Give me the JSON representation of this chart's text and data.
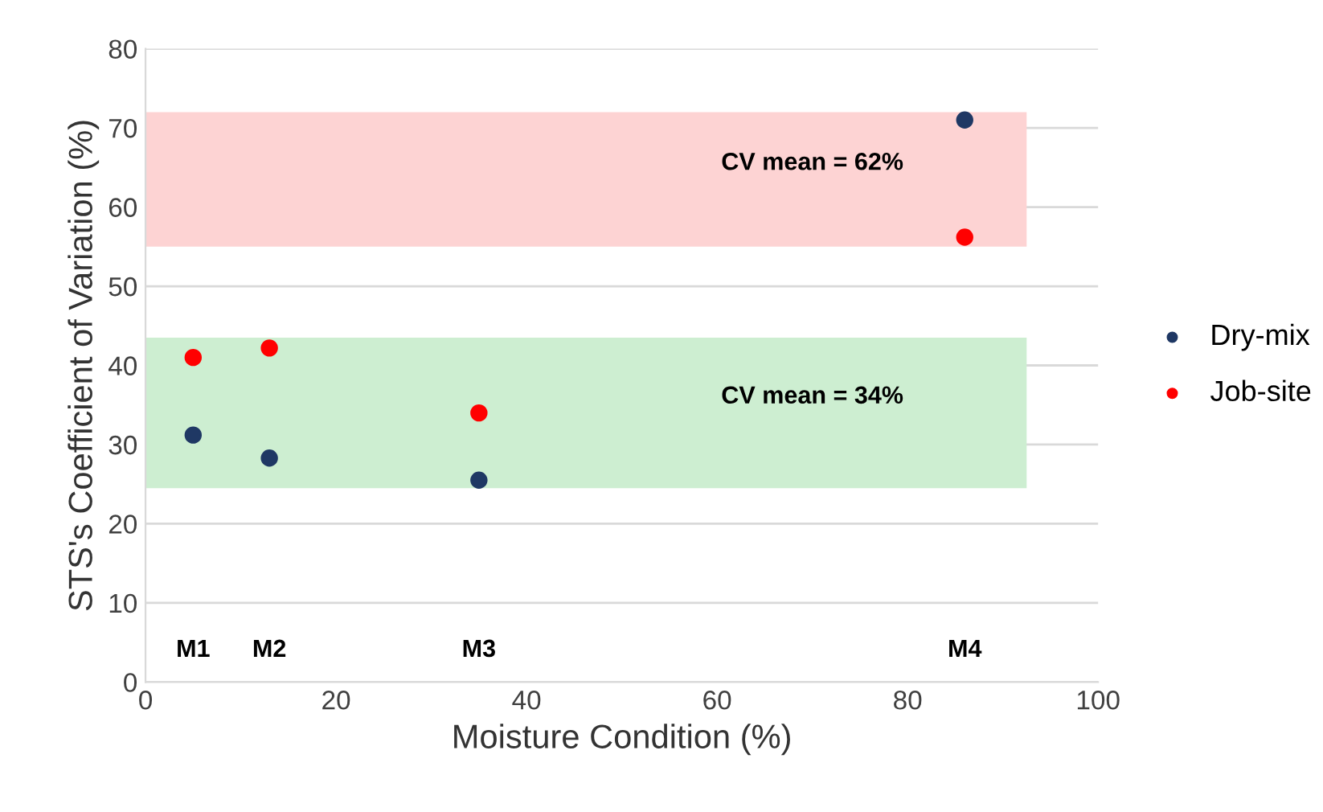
{
  "chart_data": {
    "type": "scatter",
    "xlabel": "Moisture Condition (%)",
    "ylabel": "STS's Coefficient of Variation (%)",
    "x": [
      5,
      13,
      35,
      86
    ],
    "series": [
      {
        "name": "Dry-mix",
        "color": "#1f3864",
        "values": [
          31.2,
          28.3,
          25.5,
          71
        ]
      },
      {
        "name": "Job-site",
        "color": "#ff0000",
        "values": [
          41,
          42.2,
          34,
          56.2
        ]
      }
    ],
    "bands": [
      {
        "axis": "y",
        "from": 55,
        "to": 72,
        "label": "CV mean = 62%",
        "color": "#fdd3d3"
      },
      {
        "axis": "y",
        "from": 24.5,
        "to": 43.5,
        "label": "CV mean = 34%",
        "color": "#cdeed1"
      }
    ],
    "annotations": [
      "M1",
      "M2",
      "M3",
      "M4"
    ],
    "xlim": [
      0,
      100
    ],
    "xticks": [
      0,
      20,
      40,
      60,
      80,
      100
    ],
    "ylim": [
      0,
      80
    ],
    "yticks": [
      0,
      10,
      20,
      30,
      40,
      50,
      60,
      70,
      80
    ],
    "grid": "y",
    "legend": "right",
    "marker": "circle"
  }
}
